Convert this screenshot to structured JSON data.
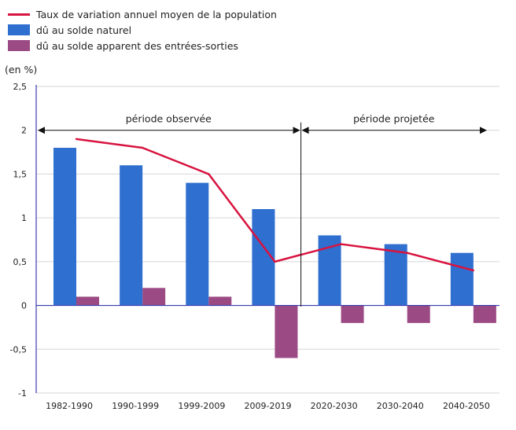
{
  "chart_data": {
    "type": "bar",
    "unit_label": "(en %)",
    "categories": [
      "1982-1990",
      "1990-1999",
      "1999-2009",
      "2009-2019",
      "2020-2030",
      "2030-2040",
      "2040-2050"
    ],
    "series": [
      {
        "name": "dû au solde naturel",
        "type": "bar",
        "color": "#2f6fcf",
        "values": [
          1.8,
          1.6,
          1.4,
          1.1,
          0.8,
          0.7,
          0.6
        ]
      },
      {
        "name": "dû au solde apparent des entrées-sorties",
        "type": "bar",
        "color": "#9b4a84",
        "values": [
          0.1,
          0.2,
          0.1,
          -0.6,
          -0.2,
          -0.2,
          -0.2
        ]
      },
      {
        "name": "Taux de variation annuel moyen de la population",
        "type": "line",
        "color": "#d8133f",
        "values": [
          1.9,
          1.8,
          1.5,
          0.5,
          0.7,
          0.6,
          0.4
        ]
      }
    ],
    "yticks": [
      "2,5",
      "2",
      "1,5",
      "1",
      "0,5",
      "0",
      "-0,5",
      "-1"
    ],
    "ytick_values": [
      2.5,
      2,
      1.5,
      1,
      0.5,
      0,
      -0.5,
      -1
    ],
    "ylim": [
      -1,
      2.5
    ],
    "grid": true,
    "legend_position": "top-left",
    "annotations": {
      "observed": "période observée",
      "projected": "période projetée"
    }
  }
}
